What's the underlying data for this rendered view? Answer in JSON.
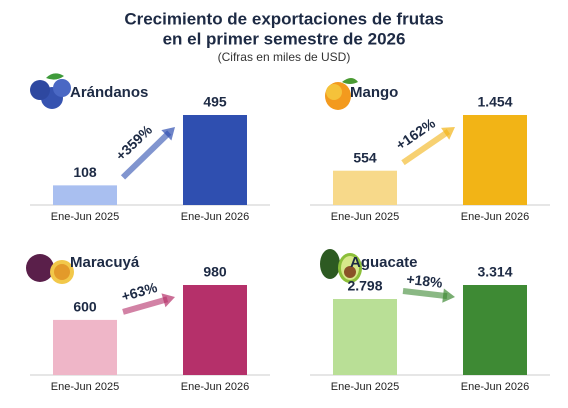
{
  "title": "Crecimiento de exportaciones de frutas",
  "title_line2": "en el primer semestre de 2026",
  "subtitle": "(Cifras en miles de USD)",
  "chart_data": [
    {
      "type": "bar",
      "title": "Arándanos",
      "categories": [
        "Ene-Jun 2025",
        "Ene-Jun 2026"
      ],
      "values": [
        108,
        495
      ],
      "colors": [
        "#a9bff0",
        "#2f4fb0"
      ],
      "annotation": "+359%"
    },
    {
      "type": "bar",
      "title": "Mango",
      "categories": [
        "Ene-Jun 2025",
        "Ene-Jun 2026"
      ],
      "values": [
        554,
        1454
      ],
      "value_labels": [
        "554",
        "1.454"
      ],
      "colors": [
        "#f7d98a",
        "#f2b416"
      ],
      "annotation": "+162%"
    },
    {
      "type": "bar",
      "title": "Maracuyá",
      "categories": [
        "Ene-Jun 2025",
        "Ene-Jun 2026"
      ],
      "values": [
        600,
        980
      ],
      "colors": [
        "#efb6c8",
        "#b5306a"
      ],
      "annotation": "+63%"
    },
    {
      "type": "bar",
      "title": "Aguacate",
      "categories": [
        "Ene-Jun 2025",
        "Ene-Jun 2026"
      ],
      "values": [
        2798,
        3314
      ],
      "value_labels": [
        "2.798",
        "3.314"
      ],
      "colors": [
        "#b9df96",
        "#3e8a34"
      ],
      "annotation": "+18%"
    }
  ]
}
